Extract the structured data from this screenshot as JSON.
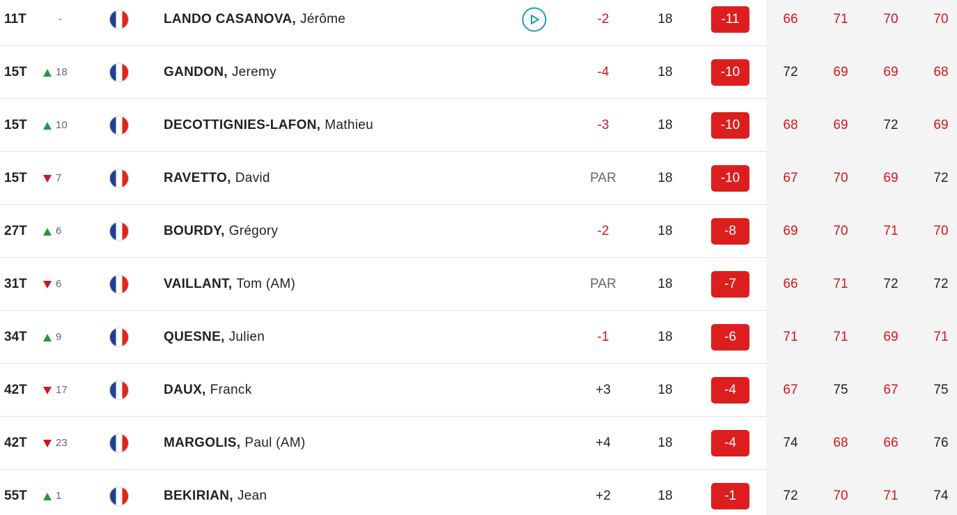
{
  "colors": {
    "under": "#d4141b",
    "over": "#222222",
    "par": "#666666"
  },
  "rows": [
    {
      "pos": "11T",
      "move": {
        "dir": "none",
        "text": "-"
      },
      "last": "LANDO CASANOVA,",
      "first": "Jérôme",
      "video": true,
      "today": "-2",
      "today_style": "under",
      "thru": 18,
      "total": "-11",
      "rounds": [
        66,
        71,
        70,
        70
      ],
      "rounds_style": [
        "under",
        "under",
        "under",
        "under"
      ]
    },
    {
      "pos": "15T",
      "move": {
        "dir": "up",
        "text": "18"
      },
      "last": "GANDON,",
      "first": "Jeremy",
      "video": false,
      "today": "-4",
      "today_style": "under",
      "thru": 18,
      "total": "-10",
      "rounds": [
        72,
        69,
        69,
        68
      ],
      "rounds_style": [
        "over",
        "under",
        "under",
        "under"
      ]
    },
    {
      "pos": "15T",
      "move": {
        "dir": "up",
        "text": "10"
      },
      "last": "DECOTTIGNIES-LAFON,",
      "first": "Mathieu",
      "video": false,
      "today": "-3",
      "today_style": "under",
      "thru": 18,
      "total": "-10",
      "rounds": [
        68,
        69,
        72,
        69
      ],
      "rounds_style": [
        "under",
        "under",
        "over",
        "under"
      ]
    },
    {
      "pos": "15T",
      "move": {
        "dir": "down",
        "text": "7"
      },
      "last": "RAVETTO,",
      "first": "David",
      "video": false,
      "today": "PAR",
      "today_style": "par",
      "thru": 18,
      "total": "-10",
      "rounds": [
        67,
        70,
        69,
        72
      ],
      "rounds_style": [
        "under",
        "under",
        "under",
        "over"
      ]
    },
    {
      "pos": "27T",
      "move": {
        "dir": "up",
        "text": "6"
      },
      "last": "BOURDY,",
      "first": "Grégory",
      "video": false,
      "today": "-2",
      "today_style": "under",
      "thru": 18,
      "total": "-8",
      "rounds": [
        69,
        70,
        71,
        70
      ],
      "rounds_style": [
        "under",
        "under",
        "under",
        "under"
      ]
    },
    {
      "pos": "31T",
      "move": {
        "dir": "down",
        "text": "6"
      },
      "last": "VAILLANT,",
      "first": "Tom (AM)",
      "video": false,
      "today": "PAR",
      "today_style": "par",
      "thru": 18,
      "total": "-7",
      "rounds": [
        66,
        71,
        72,
        72
      ],
      "rounds_style": [
        "under",
        "under",
        "over",
        "over"
      ]
    },
    {
      "pos": "34T",
      "move": {
        "dir": "up",
        "text": "9"
      },
      "last": "QUESNE,",
      "first": "Julien",
      "video": false,
      "today": "-1",
      "today_style": "under",
      "thru": 18,
      "total": "-6",
      "rounds": [
        71,
        71,
        69,
        71
      ],
      "rounds_style": [
        "under",
        "under",
        "under",
        "under"
      ]
    },
    {
      "pos": "42T",
      "move": {
        "dir": "down",
        "text": "17"
      },
      "last": "DAUX,",
      "first": "Franck",
      "video": false,
      "today": "+3",
      "today_style": "over",
      "thru": 18,
      "total": "-4",
      "rounds": [
        67,
        75,
        67,
        75
      ],
      "rounds_style": [
        "under",
        "over",
        "under",
        "over"
      ]
    },
    {
      "pos": "42T",
      "move": {
        "dir": "down",
        "text": "23"
      },
      "last": "MARGOLIS,",
      "first": "Paul (AM)",
      "video": false,
      "today": "+4",
      "today_style": "over",
      "thru": 18,
      "total": "-4",
      "rounds": [
        74,
        68,
        66,
        76
      ],
      "rounds_style": [
        "over",
        "under",
        "under",
        "over"
      ]
    },
    {
      "pos": "55T",
      "move": {
        "dir": "up",
        "text": "1"
      },
      "last": "BEKIRIAN,",
      "first": "Jean",
      "video": false,
      "today": "+2",
      "today_style": "over",
      "thru": 18,
      "total": "-1",
      "rounds": [
        72,
        70,
        71,
        74
      ],
      "rounds_style": [
        "over",
        "under",
        "under",
        "over"
      ]
    }
  ]
}
